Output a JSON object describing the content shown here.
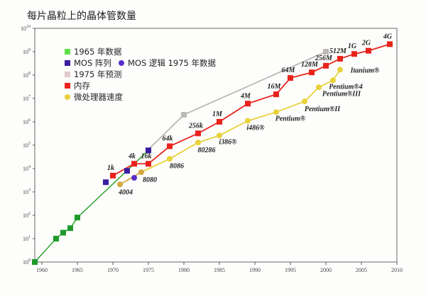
{
  "chart_data": {
    "type": "line",
    "title": "每片晶粒上的晶体管数量",
    "xlabel": "",
    "ylabel": "",
    "xlim": [
      1959,
      2010
    ],
    "ylim": [
      1,
      10000000000
    ],
    "y_scale": "log",
    "grid": false,
    "legend_placement": "top-left",
    "x_ticks": [
      "1960",
      "1965",
      "1970",
      "1975",
      "1980",
      "1985",
      "1990",
      "1995",
      "2000",
      "2005",
      "2010"
    ],
    "y_ticks": [
      {
        "base": "10",
        "exp": "0"
      },
      {
        "base": "10",
        "exp": "1"
      },
      {
        "base": "10",
        "exp": "2"
      },
      {
        "base": "10",
        "exp": "3"
      },
      {
        "base": "10",
        "exp": "4"
      },
      {
        "base": "10",
        "exp": "5"
      },
      {
        "base": "10",
        "exp": "6"
      },
      {
        "base": "10",
        "exp": "7"
      },
      {
        "base": "10",
        "exp": "8"
      },
      {
        "base": "10",
        "exp": "9"
      },
      {
        "base": "10",
        "exp": "10"
      }
    ],
    "series": [
      {
        "name": "1965 年数据",
        "color": "#3cc23a",
        "marker": "square",
        "line": true,
        "x": [
          1959,
          1962,
          1963,
          1964,
          1965
        ],
        "y": [
          1,
          10,
          18,
          28,
          80
        ],
        "trend_to": {
          "x": 1975,
          "y": 60000
        }
      },
      {
        "name": "MOS 阵列",
        "color": "#3a1ea0",
        "marker": "square",
        "line": false,
        "x": [
          1969,
          1972,
          1975
        ],
        "y": [
          2600,
          8000,
          60000
        ]
      },
      {
        "name": "MOS 逻辑 1975 年数据",
        "color": "#5a2ec8",
        "marker": "circle",
        "line": false,
        "x": [
          1973
        ],
        "y": [
          4000
        ]
      },
      {
        "name": "1975 年预测",
        "color": "#bdb8b8",
        "marker": "square",
        "line": true,
        "x": [
          1975,
          1980,
          2000
        ],
        "y": [
          65000,
          2000000,
          1000000000
        ]
      },
      {
        "name": "内存",
        "color": "#e8231b",
        "marker": "square",
        "line": true,
        "x": [
          1970,
          1973,
          1975,
          1978,
          1982,
          1985,
          1989,
          1993,
          1995,
          1998,
          2000,
          2002,
          2004,
          2006,
          2009
        ],
        "y": [
          5000,
          16000,
          16000,
          90000,
          320000,
          1000000,
          6000000,
          15000000,
          75000000,
          130000000,
          250000000,
          500000000,
          800000000,
          1100000000,
          2100000000
        ],
        "labels": [
          "1k",
          "4k",
          "16k",
          "64k",
          "256k",
          "1M",
          "4M",
          "16M",
          "64M",
          "128M",
          "256M",
          "512M",
          "1G",
          "2G",
          "4G"
        ]
      },
      {
        "name": "微处理器速度",
        "color": "#e8d23a",
        "marker": "circle",
        "line": true,
        "x": [
          1971,
          1974,
          1978,
          1982,
          1985,
          1989,
          1993,
          1997,
          1999,
          2001,
          2002
        ],
        "y": [
          2100,
          7000,
          26000,
          130000,
          260000,
          1100000,
          2600000,
          7500000,
          30000000,
          60000000,
          170000000
        ],
        "labels": [
          "4004",
          "8080",
          "8086",
          "80286",
          "i386®",
          "i486®",
          "Pentium®",
          "Pentium®II",
          "Pentium®III",
          "Pentium®4",
          "Itanium®"
        ],
        "early_color": "#d4a840"
      }
    ]
  }
}
